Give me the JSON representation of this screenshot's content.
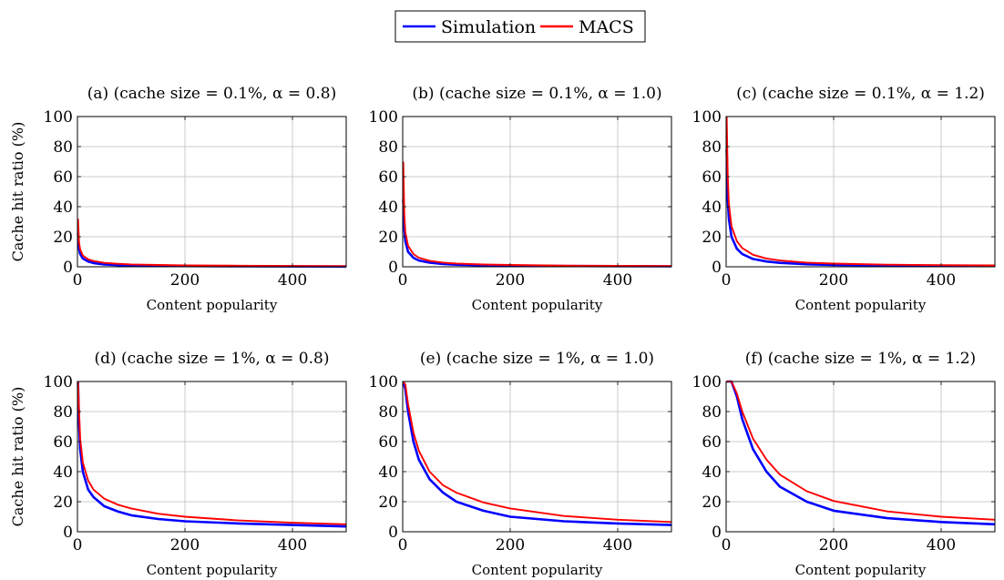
{
  "legend": {
    "items": [
      {
        "label": "Simulation",
        "color": "#0000ff"
      },
      {
        "label": "MACS",
        "color": "#ff0000"
      }
    ]
  },
  "colors": {
    "simulation": "#0000ff",
    "macs": "#ff0000",
    "grid": "#bebebe"
  },
  "chart_data": [
    {
      "type": "line",
      "title": "(a) (cache size = 0.1%, α = 0.8)",
      "xlabel": "Content popularity",
      "ylabel": "Cache hit ratio (%)",
      "xlim": [
        0,
        500
      ],
      "ylim": [
        0,
        100
      ],
      "xticks": [
        0,
        200,
        400
      ],
      "yticks": [
        0,
        20,
        40,
        60,
        80,
        100
      ],
      "grid": true,
      "x": [
        1,
        3,
        5,
        10,
        20,
        30,
        50,
        75,
        100,
        150,
        200,
        300,
        400,
        500
      ],
      "series": [
        {
          "name": "Simulation",
          "values": [
            22,
            12,
            8.5,
            5.5,
            3.5,
            2.5,
            1.6,
            1.1,
            0.9,
            0.6,
            0.5,
            0.3,
            0.25,
            0.2
          ]
        },
        {
          "name": "MACS",
          "values": [
            32,
            16,
            11.5,
            7.5,
            5,
            3.8,
            2.6,
            2,
            1.6,
            1.2,
            1,
            0.7,
            0.55,
            0.45
          ]
        }
      ]
    },
    {
      "type": "line",
      "title": "(b) (cache size = 0.1%, α = 1.0)",
      "xlabel": "Content popularity",
      "ylabel": "",
      "xlim": [
        0,
        500
      ],
      "ylim": [
        0,
        100
      ],
      "xticks": [
        0,
        200,
        400
      ],
      "yticks": [
        0,
        20,
        40,
        60,
        80,
        100
      ],
      "grid": true,
      "x": [
        1,
        3,
        5,
        10,
        20,
        30,
        50,
        75,
        100,
        150,
        200,
        300,
        400,
        500
      ],
      "series": [
        {
          "name": "Simulation",
          "values": [
            45,
            25,
            17,
            10,
            6,
            4.2,
            2.7,
            1.9,
            1.4,
            1,
            0.8,
            0.5,
            0.4,
            0.3
          ]
        },
        {
          "name": "MACS",
          "values": [
            70,
            35,
            23,
            14,
            8.5,
            6,
            4,
            2.8,
            2.2,
            1.5,
            1.2,
            0.8,
            0.6,
            0.5
          ]
        }
      ]
    },
    {
      "type": "line",
      "title": "(c) (cache size = 0.1%, α = 1.2)",
      "xlabel": "Content popularity",
      "ylabel": "",
      "xlim": [
        0,
        500
      ],
      "ylim": [
        0,
        100
      ],
      "xticks": [
        0,
        200,
        400
      ],
      "yticks": [
        0,
        20,
        40,
        60,
        80,
        100
      ],
      "grid": true,
      "x": [
        1,
        3,
        5,
        10,
        20,
        30,
        50,
        75,
        100,
        150,
        200,
        300,
        400,
        500
      ],
      "series": [
        {
          "name": "Simulation",
          "values": [
            78,
            45,
            32,
            20,
            12,
            8.5,
            5.2,
            3.5,
            2.6,
            1.7,
            1.3,
            0.9,
            0.7,
            0.5
          ]
        },
        {
          "name": "MACS",
          "values": [
            100,
            60,
            42,
            27,
            17,
            12.5,
            8,
            5.5,
            4.2,
            2.8,
            2.1,
            1.4,
            1.1,
            0.9
          ]
        }
      ]
    },
    {
      "type": "line",
      "title": "(d) (cache size = 1%, α = 0.8)",
      "xlabel": "Content popularity",
      "ylabel": "Cache hit ratio (%)",
      "xlim": [
        0,
        500
      ],
      "ylim": [
        0,
        100
      ],
      "xticks": [
        0,
        200,
        400
      ],
      "yticks": [
        0,
        20,
        40,
        60,
        80,
        100
      ],
      "grid": true,
      "x": [
        1,
        3,
        5,
        10,
        20,
        30,
        50,
        75,
        100,
        150,
        200,
        300,
        400,
        500
      ],
      "series": [
        {
          "name": "Simulation",
          "values": [
            100,
            72,
            55,
            40,
            28,
            23,
            17,
            13.5,
            11,
            8.5,
            7,
            5.5,
            4.5,
            3.5
          ]
        },
        {
          "name": "MACS",
          "values": [
            100,
            80,
            62,
            46,
            34,
            28,
            22,
            18,
            15.5,
            12,
            10,
            7.5,
            6,
            5
          ]
        }
      ]
    },
    {
      "type": "line",
      "title": "(e) (cache size = 1%, α = 1.0)",
      "xlabel": "Content popularity",
      "ylabel": "",
      "xlim": [
        0,
        500
      ],
      "ylim": [
        0,
        100
      ],
      "xticks": [
        0,
        200,
        400
      ],
      "yticks": [
        0,
        20,
        40,
        60,
        80,
        100
      ],
      "grid": true,
      "x": [
        1,
        5,
        10,
        20,
        30,
        50,
        75,
        100,
        150,
        200,
        300,
        400,
        500
      ],
      "series": [
        {
          "name": "Simulation",
          "values": [
            100,
            95,
            80,
            60,
            48,
            35,
            26,
            20,
            14,
            10,
            7,
            5.5,
            4.5
          ]
        },
        {
          "name": "MACS",
          "values": [
            100,
            98,
            85,
            66,
            54,
            40,
            31,
            26,
            19.5,
            15.5,
            10.5,
            8,
            6.5
          ]
        }
      ]
    },
    {
      "type": "line",
      "title": "(f) (cache size = 1%, α = 1.2)",
      "xlabel": "Content popularity",
      "ylabel": "",
      "xlim": [
        0,
        500
      ],
      "ylim": [
        0,
        100
      ],
      "xticks": [
        0,
        200,
        400
      ],
      "yticks": [
        0,
        20,
        40,
        60,
        80,
        100
      ],
      "grid": true,
      "x": [
        1,
        10,
        20,
        30,
        50,
        75,
        100,
        150,
        200,
        300,
        400,
        500
      ],
      "series": [
        {
          "name": "Simulation",
          "values": [
            100,
            100,
            90,
            75,
            55,
            40,
            30,
            20,
            14,
            9,
            6.5,
            5
          ]
        },
        {
          "name": "MACS",
          "values": [
            100,
            100,
            92,
            80,
            62,
            48,
            38,
            27,
            20.5,
            13.5,
            10,
            8
          ]
        }
      ]
    }
  ]
}
